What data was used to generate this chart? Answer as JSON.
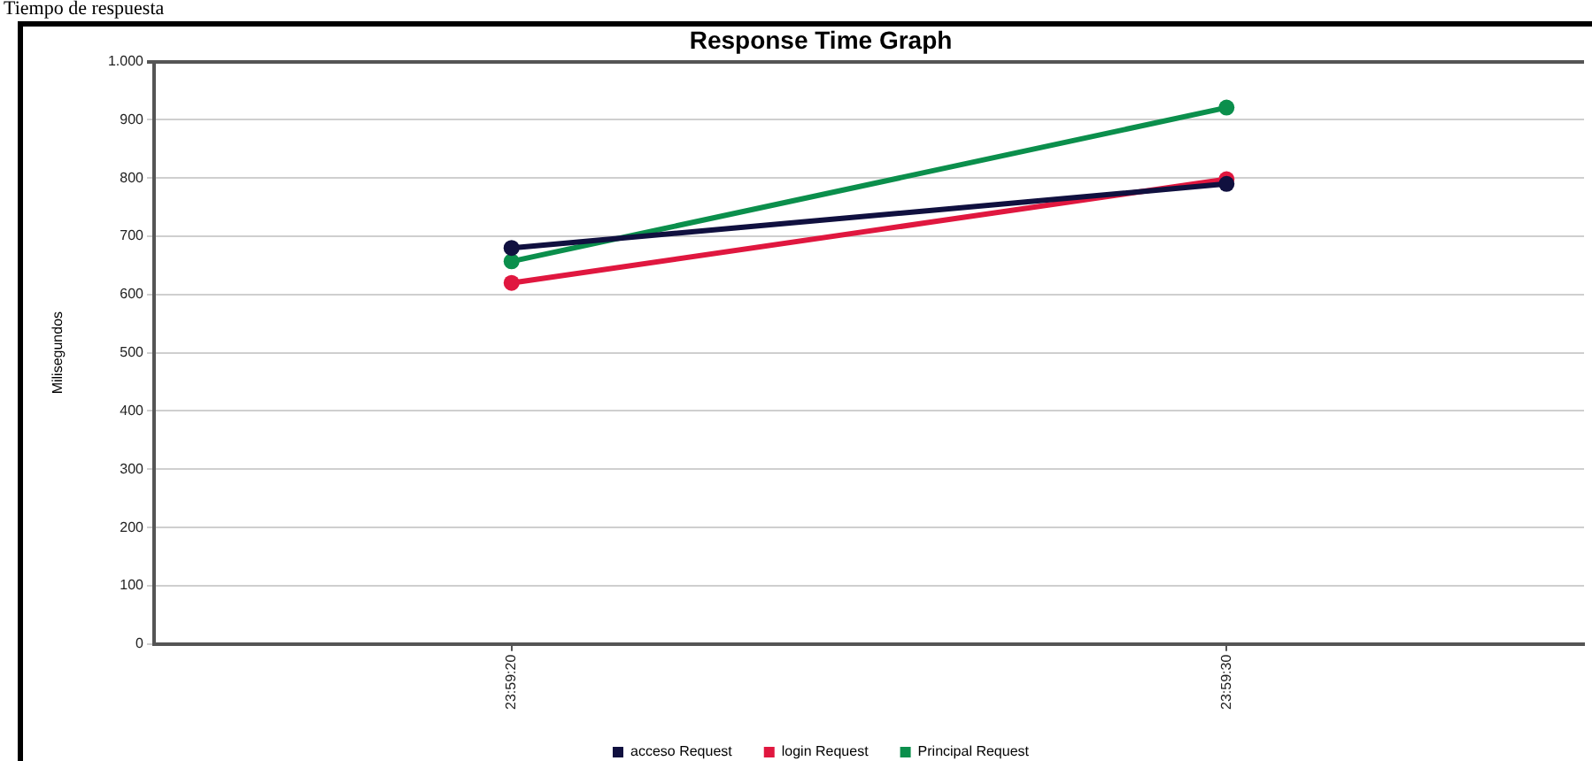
{
  "chart_data": {
    "type": "line",
    "title": "Response Time Graph",
    "ylabel": "Milisegundos",
    "annotations": [
      "Tiempo de respuesta"
    ],
    "categories": [
      "23:59:20",
      "23:59:30"
    ],
    "series": [
      {
        "name": "acceso Request",
        "color": "#10103f",
        "values": [
          680,
          790
        ]
      },
      {
        "name": "login Request",
        "color": "#e0173f",
        "values": [
          620,
          798
        ]
      },
      {
        "name": "Principal Request",
        "color": "#0b8f4c",
        "values": [
          657,
          921
        ]
      }
    ],
    "ylim": [
      0,
      1000
    ],
    "yticks": [
      0,
      100,
      200,
      300,
      400,
      500,
      600,
      700,
      800,
      900,
      {
        "value": 1000,
        "label": "1.000"
      }
    ],
    "grid": "y",
    "legend": "bottom",
    "marker": "circle",
    "line_style": "solid"
  }
}
